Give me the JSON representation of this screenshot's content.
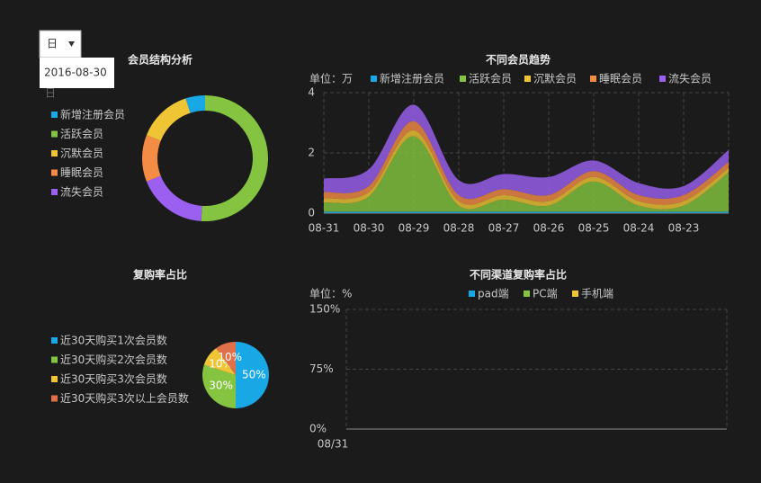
{
  "controls": {
    "select": "日",
    "date_popup": "2016-08-30",
    "hint": "日"
  },
  "chart_data": [
    {
      "type": "pie",
      "donut": true,
      "title": "会员结构分析",
      "categories": [
        "新增注册会员",
        "活跃会员",
        "沉默会员",
        "睡眠会员",
        "流失会员"
      ],
      "values": [
        5,
        51,
        14,
        12,
        18
      ],
      "colors": [
        "#19a8e6",
        "#84c440",
        "#efc535",
        "#f48c46",
        "#9b60f0"
      ]
    },
    {
      "type": "area",
      "stacked": true,
      "title": "不同会员趋势",
      "y_label": "单位：万",
      "categories": [
        "08-31",
        "08-30",
        "08-29",
        "08-28",
        "08-27",
        "08-26",
        "08-25",
        "08-24",
        "08-23",
        null
      ],
      "series": [
        {
          "name": "新增注册会员",
          "color": "#19a8e6",
          "values": [
            0.05,
            0.05,
            0.05,
            0.05,
            0.05,
            0.05,
            0.05,
            0.05,
            0.05,
            0.05
          ]
        },
        {
          "name": "活跃会员",
          "color": "#84c440",
          "values": [
            0.3,
            0.5,
            2.5,
            0.2,
            0.4,
            0.2,
            1.0,
            0.2,
            0.2,
            1.3
          ]
        },
        {
          "name": "沉默会员",
          "color": "#efc535",
          "values": [
            0.15,
            0.15,
            0.2,
            0.15,
            0.15,
            0.15,
            0.15,
            0.15,
            0.15,
            0.15
          ]
        },
        {
          "name": "睡眠会员",
          "color": "#f48c46",
          "values": [
            0.2,
            0.2,
            0.3,
            0.2,
            0.2,
            0.2,
            0.2,
            0.2,
            0.2,
            0.2
          ]
        },
        {
          "name": "流失会员",
          "color": "#9b60f0",
          "values": [
            0.45,
            0.55,
            0.55,
            0.5,
            0.5,
            0.6,
            0.35,
            0.4,
            0.3,
            0.4
          ]
        }
      ],
      "ylim": [
        0,
        4
      ],
      "yticks": [
        0,
        2,
        4
      ],
      "grid": true
    },
    {
      "type": "pie",
      "title": "复购率占比",
      "categories": [
        "近30天购买1次会员数",
        "近30天购买2次会员数",
        "近30天购买3次会员数",
        "近30天购买3次以上会员数"
      ],
      "values": [
        50,
        30,
        10,
        10
      ],
      "value_labels": [
        "50%",
        "30%",
        "10%",
        "10%"
      ],
      "colors": [
        "#19a8e6",
        "#84c440",
        "#efc535",
        "#e0704a"
      ]
    },
    {
      "type": "line",
      "title": "不同渠道复购率占比",
      "y_label": "单位：%",
      "categories": [
        "08/31"
      ],
      "series": [
        {
          "name": "pad端",
          "color": "#19a8e6",
          "values": [
            null
          ]
        },
        {
          "name": "PC端",
          "color": "#84c440",
          "values": [
            null
          ]
        },
        {
          "name": "手机端",
          "color": "#efc535",
          "values": [
            null
          ]
        }
      ],
      "ylim": [
        0,
        150
      ],
      "yticks": [
        {
          "value": 0,
          "label": "0%"
        },
        {
          "value": 75,
          "label": "75%"
        },
        {
          "value": 150,
          "label": "150%"
        }
      ],
      "grid": true
    }
  ]
}
